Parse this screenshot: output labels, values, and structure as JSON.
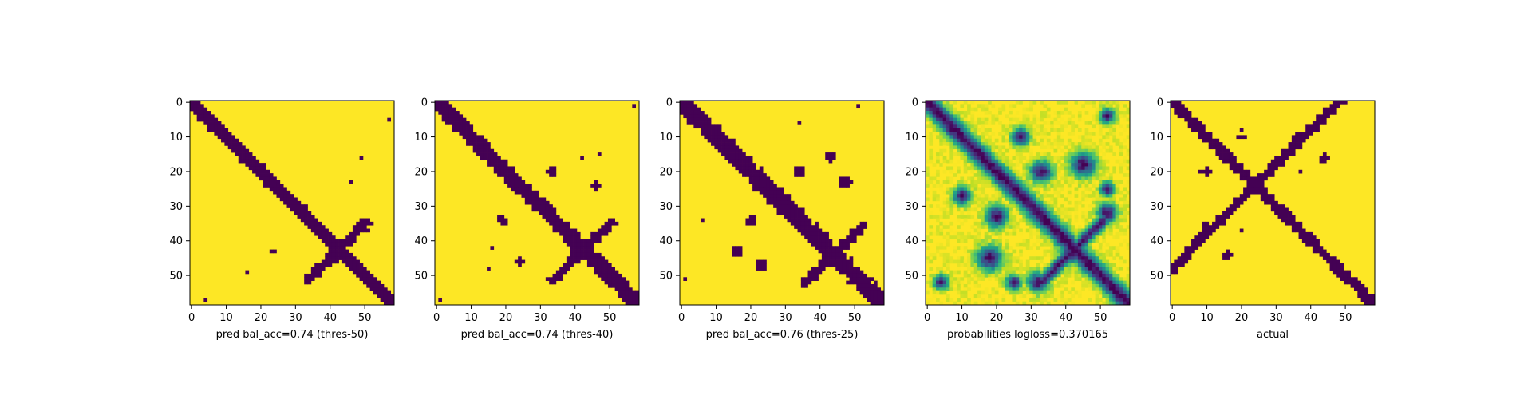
{
  "chart_data": [
    {
      "type": "heatmap",
      "xlabel": "pred bal_acc=0.74 (thres-50)",
      "xticks": [
        "0",
        "10",
        "20",
        "30",
        "40",
        "50"
      ],
      "yticks": [
        "0",
        "10",
        "20",
        "30",
        "40",
        "50"
      ],
      "grid_size": 59,
      "colormap": "viridis",
      "kind": "binary",
      "description_features": {
        "diagonal_band_width": 2.2,
        "cross_center": [
          43,
          42
        ],
        "extra_blobs": [
          {
            "row": 43,
            "col": 24,
            "r": 0.8
          },
          {
            "row": 37,
            "col": 51,
            "r": 0.7
          },
          {
            "row": 16,
            "col": 49,
            "r": 0.5
          },
          {
            "row": 23,
            "col": 46,
            "r": 0.5
          },
          {
            "row": 49,
            "col": 16,
            "r": 0.5
          },
          {
            "row": 57,
            "col": 4,
            "r": 0.6
          },
          {
            "row": 5,
            "col": 57,
            "r": 0.6
          }
        ]
      }
    },
    {
      "type": "heatmap",
      "xlabel": "pred bal_acc=0.74 (thres-40)",
      "xticks": [
        "0",
        "10",
        "20",
        "30",
        "40",
        "50"
      ],
      "yticks": [
        "0",
        "10",
        "20",
        "30",
        "40",
        "50"
      ],
      "grid_size": 59,
      "colormap": "viridis",
      "kind": "binary",
      "description_features": {
        "diagonal_band_width": 2.6,
        "cross_center": [
          43,
          42
        ],
        "extra_blobs": [
          {
            "row": 20,
            "col": 33,
            "r": 1.2
          },
          {
            "row": 34,
            "col": 19,
            "r": 1.2
          },
          {
            "row": 24,
            "col": 46,
            "r": 1.0
          },
          {
            "row": 46,
            "col": 24,
            "r": 1.0
          },
          {
            "row": 15,
            "col": 47,
            "r": 0.6
          },
          {
            "row": 48,
            "col": 15,
            "r": 0.6
          },
          {
            "row": 16,
            "col": 42,
            "r": 0.5
          },
          {
            "row": 42,
            "col": 16,
            "r": 0.5
          },
          {
            "row": 57,
            "col": 1,
            "r": 0.6
          },
          {
            "row": 1,
            "col": 57,
            "r": 0.6
          }
        ]
      }
    },
    {
      "type": "heatmap",
      "xlabel": "pred bal_acc=0.76 (thres-25)",
      "xticks": [
        "0",
        "10",
        "20",
        "30",
        "40",
        "50"
      ],
      "yticks": [
        "0",
        "10",
        "20",
        "30",
        "40",
        "50"
      ],
      "grid_size": 59,
      "colormap": "viridis",
      "kind": "binary",
      "description_features": {
        "diagonal_band_width": 3.0,
        "cross_center": [
          44,
          44
        ],
        "extra_blobs": [
          {
            "row": 16,
            "col": 43,
            "r": 1.3
          },
          {
            "row": 43,
            "col": 16,
            "r": 1.3
          },
          {
            "row": 23,
            "col": 47,
            "r": 1.5
          },
          {
            "row": 47,
            "col": 23,
            "r": 1.5
          },
          {
            "row": 20,
            "col": 34,
            "r": 1.3
          },
          {
            "row": 34,
            "col": 20,
            "r": 1.3
          },
          {
            "row": 6,
            "col": 34,
            "r": 0.6
          },
          {
            "row": 34,
            "col": 6,
            "r": 0.6
          },
          {
            "row": 1,
            "col": 51,
            "r": 0.7
          },
          {
            "row": 51,
            "col": 1,
            "r": 0.7
          }
        ]
      }
    },
    {
      "type": "heatmap",
      "xlabel": "probabilities logloss=0.370165",
      "xticks": [
        "0",
        "10",
        "20",
        "30",
        "40",
        "50"
      ],
      "yticks": [
        "0",
        "10",
        "20",
        "30",
        "40",
        "50"
      ],
      "grid_size": 59,
      "colormap": "viridis",
      "kind": "continuous",
      "value_range": [
        0,
        1
      ],
      "description_features": {
        "diagonal_band_width": 2.6,
        "cross_center": [
          43,
          42
        ],
        "extra_blobs": [
          {
            "row": 20,
            "col": 33,
            "r": 2.2
          },
          {
            "row": 33,
            "col": 20,
            "r": 2.2
          },
          {
            "row": 18,
            "col": 45,
            "r": 2.5
          },
          {
            "row": 45,
            "col": 18,
            "r": 2.5
          },
          {
            "row": 10,
            "col": 27,
            "r": 1.8
          },
          {
            "row": 27,
            "col": 10,
            "r": 1.8
          },
          {
            "row": 32,
            "col": 52,
            "r": 2.0
          },
          {
            "row": 52,
            "col": 32,
            "r": 2.0
          },
          {
            "row": 4,
            "col": 52,
            "r": 1.5
          },
          {
            "row": 52,
            "col": 4,
            "r": 1.5
          },
          {
            "row": 25,
            "col": 52,
            "r": 1.5
          },
          {
            "row": 52,
            "col": 25,
            "r": 1.5
          }
        ]
      }
    },
    {
      "type": "heatmap",
      "xlabel": "actual",
      "xticks": [
        "0",
        "10",
        "20",
        "30",
        "40",
        "50"
      ],
      "yticks": [
        "0",
        "10",
        "20",
        "30",
        "40",
        "50"
      ],
      "grid_size": 59,
      "colormap": "viridis",
      "kind": "binary",
      "description_features": {
        "diagonal_band_width": 1.8,
        "cross_center": [
          24,
          24
        ],
        "extra_blobs": [
          {
            "row": 10,
            "col": 36,
            "r": 1.2
          },
          {
            "row": 36,
            "col": 10,
            "r": 1.2
          },
          {
            "row": 10,
            "col": 20,
            "r": 0.8
          },
          {
            "row": 20,
            "col": 10,
            "r": 0.8
          },
          {
            "row": 16,
            "col": 44,
            "r": 1.1
          },
          {
            "row": 44,
            "col": 16,
            "r": 1.1
          },
          {
            "row": 20,
            "col": 37,
            "r": 0.7
          },
          {
            "row": 37,
            "col": 20,
            "r": 0.7
          },
          {
            "row": 8,
            "col": 20,
            "r": 0.6
          },
          {
            "row": 20,
            "col": 8,
            "r": 0.6
          }
        ]
      }
    }
  ]
}
